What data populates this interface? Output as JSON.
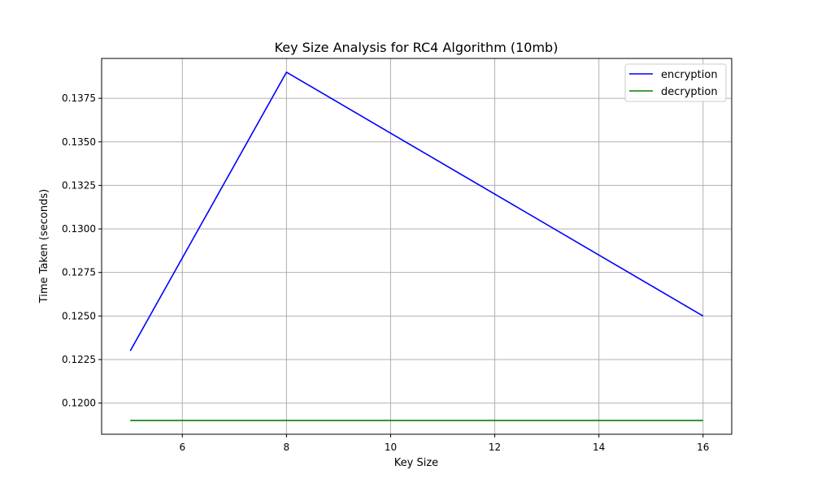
{
  "chart_data": {
    "type": "line",
    "title": "Key Size Analysis for RC4 Algorithm (10mb)",
    "xlabel": "Key Size",
    "ylabel": "Time Taken (seconds)",
    "x": [
      5,
      8,
      16
    ],
    "series": [
      {
        "name": "encryption",
        "color": "#0000ff",
        "values": [
          0.123,
          0.139,
          0.125
        ]
      },
      {
        "name": "decryption",
        "color": "#008000",
        "values": [
          0.119,
          0.119,
          0.119
        ]
      }
    ],
    "xlim": [
      4.45,
      16.55
    ],
    "ylim": [
      0.11821,
      0.13979
    ],
    "xticks": [
      6,
      8,
      10,
      12,
      14,
      16
    ],
    "xtick_labels": [
      "6",
      "8",
      "10",
      "12",
      "14",
      "16"
    ],
    "yticks": [
      0.12,
      0.1225,
      0.125,
      0.1275,
      0.13,
      0.1325,
      0.135,
      0.1375
    ],
    "ytick_labels": [
      "0.1200",
      "0.1225",
      "0.1250",
      "0.1275",
      "0.1300",
      "0.1325",
      "0.1350",
      "0.1375"
    ],
    "grid": true,
    "legend_position": "top-right"
  }
}
